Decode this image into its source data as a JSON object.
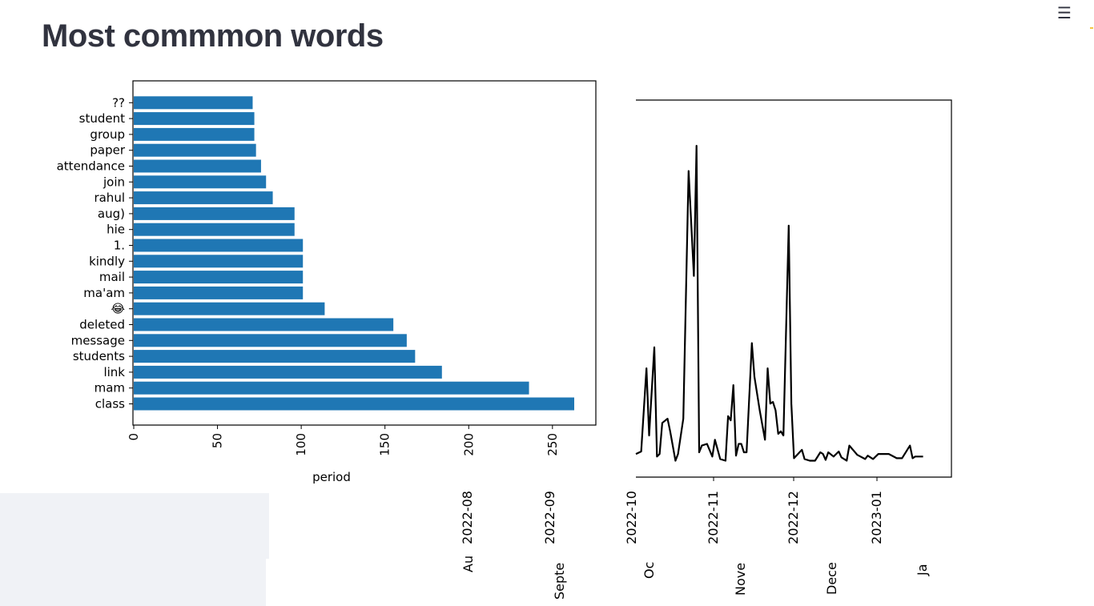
{
  "page": {
    "title": "Most commmon words",
    "menu_icon": "hamburger-menu-icon",
    "menu_glyph": "☰"
  },
  "chart_data": [
    {
      "type": "bar",
      "orientation": "horizontal",
      "categories": [
        "class",
        "mam",
        "link",
        "students",
        "message",
        "deleted",
        "😂",
        "ma'am",
        "mail",
        "kindly",
        "1.",
        "hie",
        "aug)",
        "rahul",
        "join",
        "attendance",
        "paper",
        "group",
        "student",
        "??"
      ],
      "values": [
        263,
        236,
        184,
        168,
        163,
        155,
        114,
        101,
        101,
        101,
        101,
        96,
        96,
        83,
        79,
        76,
        73,
        72,
        72,
        71
      ],
      "xlabel": "period",
      "ylabel": "",
      "xlim": [
        0,
        277
      ],
      "xticks": [
        "0",
        "50",
        "100",
        "150",
        "200",
        "250"
      ],
      "color": "#1f77b4"
    },
    {
      "type": "line",
      "color": "#000000",
      "xlabel": "",
      "ylabel": "",
      "xticks": [
        "2022-08",
        "2022-09",
        "2022-10",
        "2022-11",
        "2022-12",
        "2023-01"
      ],
      "secondary_xticks": [
        "Au",
        "Septe",
        "Oc",
        "Nove",
        "Dece",
        "Ja"
      ],
      "ylim": [
        0,
        50
      ],
      "x": [
        "2022-10-01",
        "2022-10-03",
        "2022-10-05",
        "2022-10-06",
        "2022-10-08",
        "2022-10-09",
        "2022-10-10",
        "2022-10-11",
        "2022-10-13",
        "2022-10-14",
        "2022-10-16",
        "2022-10-17",
        "2022-10-19",
        "2022-10-21",
        "2022-10-23",
        "2022-10-24",
        "2022-10-25",
        "2022-10-26",
        "2022-10-28",
        "2022-10-30",
        "2022-10-31",
        "2022-11-02",
        "2022-11-04",
        "2022-11-05",
        "2022-11-06",
        "2022-11-07",
        "2022-11-08",
        "2022-11-09",
        "2022-11-10",
        "2022-11-11",
        "2022-11-12",
        "2022-11-14",
        "2022-11-15",
        "2022-11-16",
        "2022-11-17",
        "2022-11-19",
        "2022-11-20",
        "2022-11-21",
        "2022-11-22",
        "2022-11-23",
        "2022-11-24",
        "2022-11-25",
        "2022-11-26",
        "2022-11-28",
        "2022-11-29",
        "2022-11-30",
        "2022-12-03",
        "2022-12-04",
        "2022-12-06",
        "2022-12-07",
        "2022-12-08",
        "2022-12-10",
        "2022-12-11",
        "2022-12-12",
        "2022-12-13",
        "2022-12-15",
        "2022-12-17",
        "2022-12-18",
        "2022-12-20",
        "2022-12-21",
        "2022-12-24",
        "2022-12-27",
        "2022-12-28",
        "2022-12-30",
        "2023-01-01",
        "2023-01-03",
        "2023-01-05",
        "2023-01-08",
        "2023-01-10",
        "2023-01-13",
        "2023-01-14",
        "2023-01-15",
        "2023-01-18"
      ],
      "y": [
        0.8,
        1.1,
        11.0,
        3.0,
        13.5,
        0.5,
        0.8,
        4.5,
        5.0,
        3.5,
        0.0,
        0.8,
        5.0,
        34.5,
        22.0,
        37.5,
        1.0,
        1.8,
        2.0,
        0.5,
        2.5,
        0.2,
        0.0,
        5.3,
        4.8,
        9.0,
        0.6,
        2.0,
        2.0,
        1.0,
        1.0,
        14.0,
        10.0,
        8.0,
        6.0,
        2.5,
        11.0,
        6.8,
        7.0,
        6.0,
        3.2,
        3.5,
        3.0,
        28.0,
        6.8,
        0.3,
        1.3,
        0.2,
        0.0,
        0.0,
        0.0,
        1.0,
        0.8,
        0.1,
        1.0,
        0.5,
        1.1,
        0.4,
        0.0,
        1.8,
        0.7,
        0.2,
        0.6,
        0.2,
        0.8,
        0.8,
        0.8,
        0.3,
        0.3,
        1.8,
        0.3,
        0.5,
        0.5
      ]
    }
  ]
}
